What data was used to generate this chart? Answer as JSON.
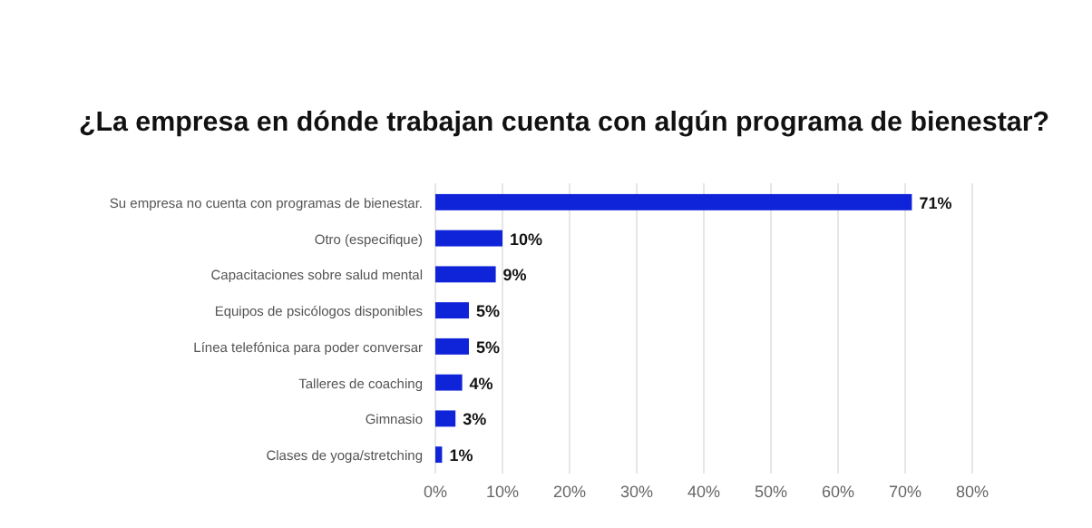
{
  "chart_data": {
    "type": "bar",
    "orientation": "horizontal",
    "title": "¿La empresa en dónde trabajan cuenta con algún programa de bienestar?",
    "categories": [
      "Su empresa no cuenta con programas de bienestar.",
      "Otro (especifique)",
      "Capacitaciones sobre salud mental",
      "Equipos de psicólogos disponibles",
      "Línea telefónica para poder conversar",
      "Talleres de coaching",
      "Gimnasio",
      "Clases de yoga/stretching"
    ],
    "values": [
      71,
      10,
      9,
      5,
      5,
      4,
      3,
      1
    ],
    "value_labels": [
      "71%",
      "10%",
      "9%",
      "5%",
      "5%",
      "4%",
      "3%",
      "1%"
    ],
    "color": "#0f23d9",
    "xlim": [
      0,
      80
    ],
    "xticks": [
      {
        "value": 0,
        "label": "0%"
      },
      {
        "value": 10,
        "label": "10%"
      },
      {
        "value": 20,
        "label": "20%"
      },
      {
        "value": 30,
        "label": "30%"
      },
      {
        "value": 40,
        "label": "40%"
      },
      {
        "value": 50,
        "label": "50%"
      },
      {
        "value": 60,
        "label": "60%"
      },
      {
        "value": 70,
        "label": "70%"
      },
      {
        "value": 80,
        "label": "80%"
      }
    ],
    "grid": "x"
  }
}
